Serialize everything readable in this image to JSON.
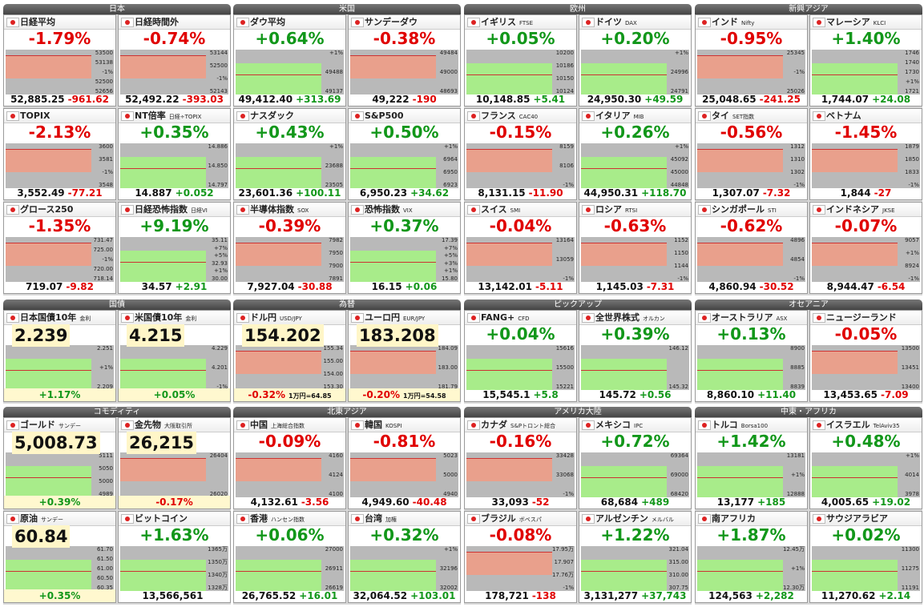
{
  "sections": [
    {
      "groups": [
        {
          "title": "日本",
          "cells": [
            {
              "name": "日経平均",
              "change_pct": "-1.79%",
              "price": "52,885.25",
              "change": "-961.62",
              "axis": [
                "53500",
                "53138",
                "-1%",
                "52500",
                "52656"
              ]
            },
            {
              "name": "日経時間外",
              "change_pct": "-0.74%",
              "price": "52,492.22",
              "change": "-393.03",
              "axis": [
                "53144",
                "52500",
                "-1%",
                "52143"
              ]
            },
            {
              "name": "TOPIX",
              "change_pct": "-2.13%",
              "price": "3,552.49",
              "change": "-77.21",
              "axis": [
                "3600",
                "3581",
                "-1%",
                "3548"
              ]
            },
            {
              "name": "NT倍率",
              "sub": "日経÷TOPIX",
              "change_pct": "+0.35%",
              "price": "14.887",
              "change": "+0.052",
              "axis": [
                "14.886",
                "14.850",
                "14.797"
              ]
            },
            {
              "name": "グロース250",
              "change_pct": "-1.35%",
              "price": "719.07",
              "change": "-9.82",
              "axis": [
                "731.47",
                "725.00",
                "-1%",
                "720.00",
                "718.14"
              ]
            },
            {
              "name": "日経恐怖指数",
              "sub": "日経VI",
              "change_pct": "+9.19%",
              "price": "34.57",
              "change": "+2.91",
              "axis": [
                "35.11",
                "+7%",
                "+5%",
                "32.93",
                "+1%",
                "30.00"
              ]
            }
          ]
        },
        {
          "title": "米国",
          "cells": [
            {
              "name": "ダウ平均",
              "change_pct": "+0.64%",
              "price": "49,412.40",
              "change": "+313.69",
              "axis": [
                "+1%",
                "49488",
                "49137"
              ]
            },
            {
              "name": "サンデーダウ",
              "change_pct": "-0.38%",
              "price": "49,222",
              "change": "-190",
              "axis": [
                "49484",
                "49000",
                "48693"
              ]
            },
            {
              "name": "ナスダック",
              "change_pct": "+0.43%",
              "price": "23,601.36",
              "change": "+100.11",
              "axis": [
                "+1%",
                "23688",
                "23505"
              ]
            },
            {
              "name": "S&P500",
              "change_pct": "+0.50%",
              "price": "6,950.23",
              "change": "+34.62",
              "axis": [
                "+1%",
                "6964",
                "6950",
                "6923"
              ]
            },
            {
              "name": "半導体指数",
              "sub": "SOX",
              "change_pct": "-0.39%",
              "price": "7,927.04",
              "change": "-30.88",
              "axis": [
                "7982",
                "7950",
                "7900",
                "7891"
              ]
            },
            {
              "name": "恐怖指数",
              "sub": "VIX",
              "change_pct": "+0.37%",
              "price": "16.15",
              "change": "+0.06",
              "axis": [
                "17.39",
                "+7%",
                "+5%",
                "+3%",
                "+1%",
                "15.80"
              ]
            }
          ]
        },
        {
          "title": "欧州",
          "cells": [
            {
              "name": "イギリス",
              "sub": "FTSE",
              "change_pct": "+0.05%",
              "price": "10,148.85",
              "change": "+5.41",
              "axis": [
                "10200",
                "10186",
                "10150",
                "10124"
              ]
            },
            {
              "name": "ドイツ",
              "sub": "DAX",
              "change_pct": "+0.20%",
              "price": "24,950.30",
              "change": "+49.59",
              "axis": [
                "+1%",
                "24996",
                "24791"
              ]
            },
            {
              "name": "フランス",
              "sub": "CAC40",
              "change_pct": "-0.15%",
              "price": "8,131.15",
              "change": "-11.90",
              "axis": [
                "8159",
                "8106",
                "-1%"
              ]
            },
            {
              "name": "イタリア",
              "sub": "MIB",
              "change_pct": "+0.26%",
              "price": "44,950.31",
              "change": "+118.70",
              "axis": [
                "+1%",
                "45092",
                "45000",
                "44848"
              ]
            },
            {
              "name": "スイス",
              "sub": "SMI",
              "change_pct": "-0.04%",
              "price": "13,142.01",
              "change": "-5.11",
              "axis": [
                "13164",
                "13059",
                "-1%"
              ]
            },
            {
              "name": "ロシア",
              "sub": "RTSI",
              "change_pct": "-0.63%",
              "price": "1,145.03",
              "change": "-7.31",
              "axis": [
                "1152",
                "1150",
                "1144",
                "-1%"
              ]
            }
          ]
        },
        {
          "title": "新興アジア",
          "cells": [
            {
              "name": "インド",
              "sub": "Nifty",
              "change_pct": "-0.95%",
              "price": "25,048.65",
              "change": "-241.25",
              "axis": [
                "25345",
                "-1%",
                "25026"
              ]
            },
            {
              "name": "マレーシア",
              "sub": "KLCI",
              "change_pct": "+1.40%",
              "price": "1,744.07",
              "change": "+24.08",
              "axis": [
                "1746",
                "1740",
                "1730",
                "+1%",
                "1721"
              ]
            },
            {
              "name": "タイ",
              "sub": "SET指数",
              "change_pct": "-0.56%",
              "price": "1,307.07",
              "change": "-7.32",
              "axis": [
                "1312",
                "1310",
                "1302",
                "-1%"
              ]
            },
            {
              "name": "ベトナム",
              "change_pct": "-1.45%",
              "price": "1,844",
              "change": "-27",
              "axis": [
                "1879",
                "1850",
                "1833",
                "-1%"
              ]
            },
            {
              "name": "シンガポール",
              "sub": "STI",
              "change_pct": "-0.62%",
              "price": "4,860.94",
              "change": "-30.52",
              "axis": [
                "4896",
                "4854",
                "-1%"
              ]
            },
            {
              "name": "インドネシア",
              "sub": "JKSE",
              "change_pct": "-0.07%",
              "price": "8,944.47",
              "change": "-6.54",
              "axis": [
                "9057",
                "+1%",
                "8924",
                "-1%"
              ]
            }
          ]
        }
      ]
    },
    {
      "groups": [
        {
          "title": "国債",
          "cells": [
            {
              "name": "日本国債10年",
              "sub": "金利",
              "big": "2.239",
              "change_pct": "+1.17%",
              "axis": [
                "2.251",
                "+1%",
                "2.209"
              ]
            },
            {
              "name": "米国債10年",
              "sub": "金利",
              "big": "4.215",
              "change_pct": "+0.05%",
              "axis": [
                "4.229",
                "4.201",
                "-1%"
              ]
            }
          ]
        },
        {
          "title": "為替",
          "cells": [
            {
              "name": "ドル円",
              "sub": "USD/JPY",
              "big": "154.202",
              "change_pct": "-0.32%",
              "note": "1万円=64.85",
              "axis": [
                "155.34",
                "155.00",
                "154.00",
                "153.30"
              ]
            },
            {
              "name": "ユーロ円",
              "sub": "EUR/JPY",
              "big": "183.208",
              "change_pct": "-0.20%",
              "note": "1万円=54.58",
              "axis": [
                "184.09",
                "183.00",
                "181.79"
              ]
            }
          ]
        },
        {
          "title": "ピックアップ",
          "cells": [
            {
              "name": "FANG+",
              "sub": "CFD",
              "change_pct": "+0.04%",
              "price": "15,545.1",
              "change": "+5.8",
              "axis": [
                "15616",
                "15500",
                "15221"
              ]
            },
            {
              "name": "全世界株式",
              "sub": "オルカン",
              "change_pct": "+0.39%",
              "price": "145.72",
              "change": "+0.56",
              "axis": [
                "146.12",
                "145.32"
              ]
            }
          ]
        },
        {
          "title": "オセアニア",
          "cells": [
            {
              "name": "オーストラリア",
              "sub": "ASX",
              "change_pct": "+0.13%",
              "price": "8,860.10",
              "change": "+11.40",
              "axis": [
                "8900",
                "8885",
                "8839"
              ]
            },
            {
              "name": "ニュージーランド",
              "change_pct": "-0.05%",
              "price": "13,453.65",
              "change": "-7.09",
              "axis": [
                "13500",
                "13451",
                "13400"
              ]
            }
          ]
        }
      ]
    },
    {
      "groups": [
        {
          "title": "コモディティ",
          "cells": [
            {
              "name": "ゴールド",
              "sub": "サンデー",
              "big": "5,008.73",
              "change_pct": "+0.39%",
              "axis": [
                "5111",
                "5050",
                "5000",
                "4989"
              ]
            },
            {
              "name": "金先物",
              "sub": "大阪取引所",
              "big": "26,215",
              "change_pct": "-0.17%",
              "axis": [
                "26404",
                "26020"
              ]
            },
            {
              "name": "原油",
              "sub": "サンデー",
              "big": "60.84",
              "change_pct": "+0.35%",
              "axis": [
                "61.70",
                "61.50",
                "61.00",
                "60.50",
                "60.35"
              ]
            },
            {
              "name": "ビットコイン",
              "change_pct": "+1.63%",
              "price": "13,566,561",
              "axis": [
                "1365万",
                "1350万",
                "1340万",
                "1328万"
              ]
            }
          ]
        },
        {
          "title": "北東アジア",
          "cells": [
            {
              "name": "中国",
              "sub": "上海総合指数",
              "change_pct": "-0.09%",
              "price": "4,132.61",
              "change": "-3.56",
              "axis": [
                "4160",
                "4124",
                "4100"
              ]
            },
            {
              "name": "韓国",
              "sub": "KOSPI",
              "change_pct": "-0.81%",
              "price": "4,949.60",
              "change": "-40.48",
              "axis": [
                "5023",
                "5000",
                "4940"
              ]
            },
            {
              "name": "香港",
              "sub": "ハンセン指数",
              "change_pct": "+0.06%",
              "price": "26,765.52",
              "change": "+16.01",
              "axis": [
                "27000",
                "26911",
                "26619"
              ]
            },
            {
              "name": "台湾",
              "sub": "加権",
              "change_pct": "+0.32%",
              "price": "32,064.52",
              "change": "+103.01",
              "axis": [
                "+1%",
                "32196",
                "32002"
              ]
            }
          ]
        },
        {
          "title": "アメリカ大陸",
          "cells": [
            {
              "name": "カナダ",
              "sub": "S&Pトロント総合",
              "change_pct": "-0.16%",
              "price": "33,093",
              "change": "-52",
              "axis": [
                "33428",
                "33068",
                "-1%"
              ]
            },
            {
              "name": "メキシコ",
              "sub": "IPC",
              "change_pct": "+0.72%",
              "price": "68,684",
              "change": "+489",
              "axis": [
                "69364",
                "69000",
                "68420"
              ]
            },
            {
              "name": "ブラジル",
              "sub": "ボベスパ",
              "change_pct": "-0.08%",
              "price": "178,721",
              "change": "-138",
              "axis": [
                "17.95万",
                "17.907",
                "17.76万",
                "-1%"
              ]
            },
            {
              "name": "アルゼンチン",
              "sub": "メルバル",
              "change_pct": "+1.22%",
              "price": "3,131,277",
              "change": "+37,743",
              "axis": [
                "321.04",
                "315.00",
                "310.00",
                "307.75"
              ]
            }
          ]
        },
        {
          "title": "中東・アフリカ",
          "cells": [
            {
              "name": "トルコ",
              "sub": "Borsa100",
              "change_pct": "+1.42%",
              "price": "13,177",
              "change": "+185",
              "axis": [
                "13181",
                "+1%",
                "12888"
              ]
            },
            {
              "name": "イスラエル",
              "sub": "TelAviv35",
              "change_pct": "+0.48%",
              "price": "4,005.65",
              "change": "+19.02",
              "axis": [
                "+1%",
                "4014",
                "3978"
              ]
            },
            {
              "name": "南アフリカ",
              "change_pct": "+1.87%",
              "price": "124,563",
              "change": "+2,282",
              "axis": [
                "12.45万",
                "+1%",
                "12.30万"
              ]
            },
            {
              "name": "サウジアラビア",
              "change_pct": "+0.02%",
              "price": "11,270.62",
              "change": "+2.14",
              "axis": [
                "11300",
                "11275",
                "11191"
              ]
            }
          ]
        }
      ]
    }
  ]
}
